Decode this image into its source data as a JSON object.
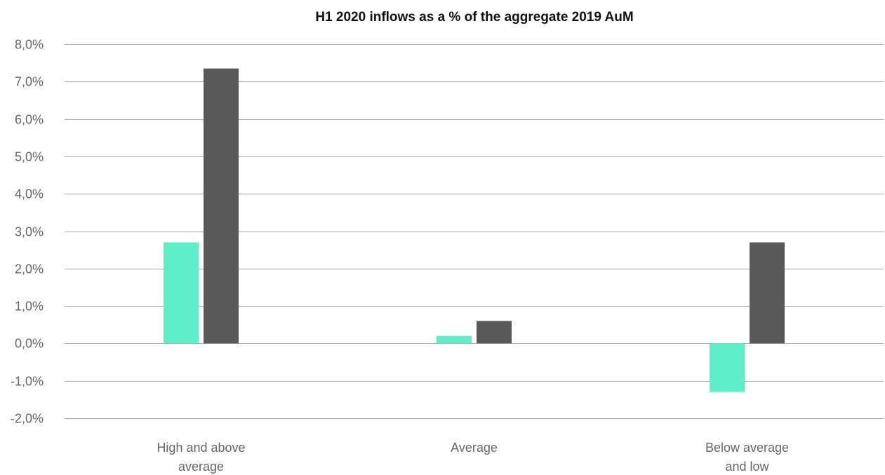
{
  "chart_data": {
    "type": "bar",
    "title": "H1 2020 inflows as a % of the aggregate 2019 AuM",
    "categories": [
      [
        "High and above",
        "average"
      ],
      [
        "Average"
      ],
      [
        "Below average",
        "and low"
      ]
    ],
    "series": [
      {
        "values": [
          2.7,
          0.2,
          -1.3
        ],
        "color": "#5eefc9"
      },
      {
        "values": [
          7.35,
          0.6,
          2.7
        ],
        "color": "#595959"
      }
    ],
    "ylim": [
      -2.0,
      8.0
    ],
    "yticks": [
      8.0,
      7.0,
      6.0,
      5.0,
      4.0,
      3.0,
      2.0,
      1.0,
      0.0,
      -1.0,
      -2.0
    ],
    "ytick_labels": [
      "8,0%",
      "7,0%",
      "6,0%",
      "5,0%",
      "4,0%",
      "3,0%",
      "2,0%",
      "1,0%",
      "0,0%",
      "-1,0%",
      "-2,0%"
    ],
    "grid": true,
    "legend": "none"
  }
}
